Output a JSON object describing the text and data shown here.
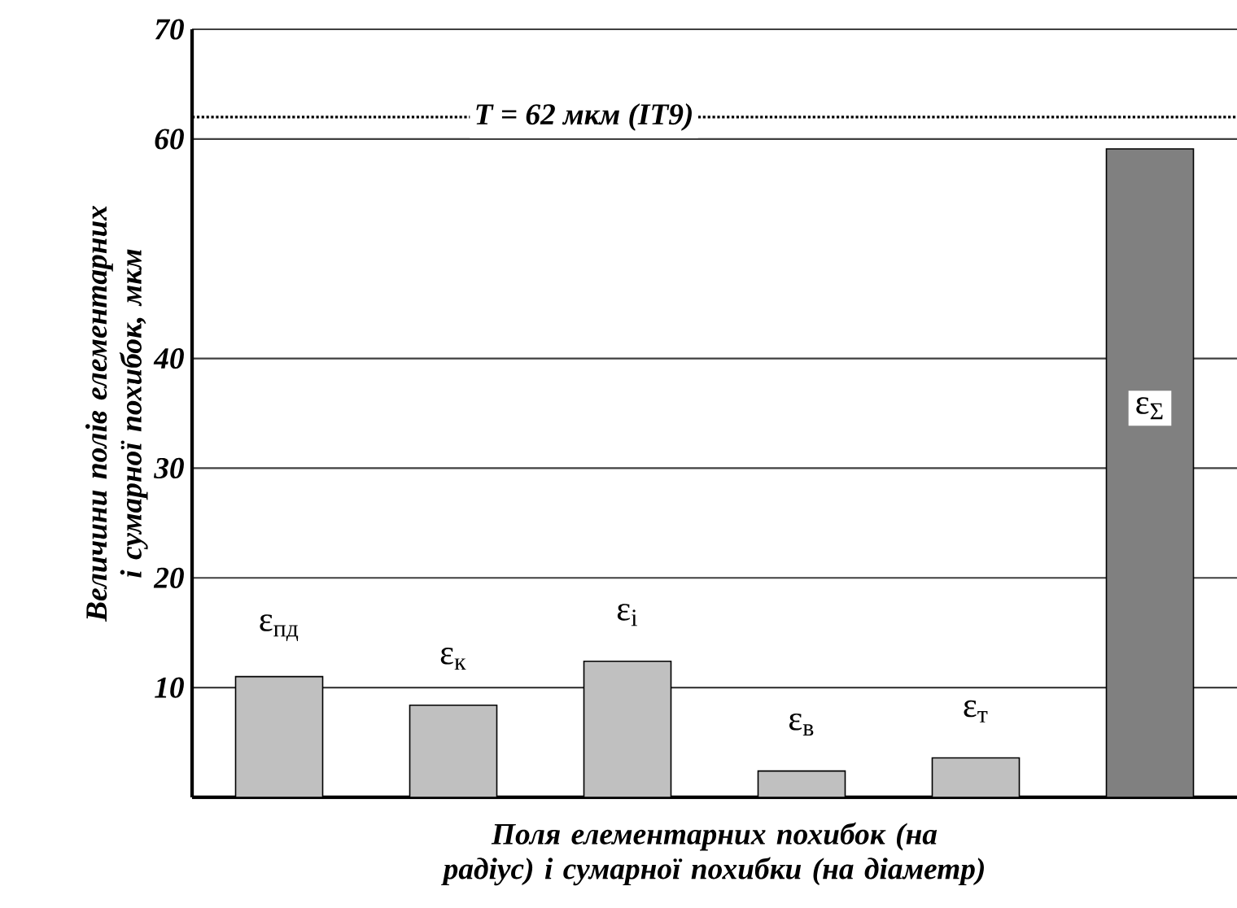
{
  "chart_data": {
    "type": "bar",
    "xlabel": "Поля елементарних похибок (на радіус) і сумарної похибки (на діаметр)",
    "ylabel": "Величини полів елементарних і сумарної похибок, мкм",
    "categories": [
      "ε$_{пд}$",
      "ε$_{к}$",
      "ε$_{і}$",
      "ε$_{в}$",
      "ε$_{т}$",
      "ε$_{Σ}$"
    ],
    "values": [
      11.0,
      8.4,
      12.4,
      2.4,
      3.6,
      59.1
    ],
    "colors": [
      "#c0c0c0",
      "#c0c0c0",
      "#c0c0c0",
      "#c0c0c0",
      "#c0c0c0",
      "#808080"
    ],
    "ylim": [
      0,
      70
    ],
    "yticks": [
      10,
      20,
      30,
      40,
      60,
      70
    ],
    "grid": "y",
    "ref_lines": [
      {
        "axis": "y",
        "value": 62,
        "label": "T = 62 мкм (IT9)",
        "color": "#000000",
        "line_style": "dotted"
      }
    ]
  }
}
